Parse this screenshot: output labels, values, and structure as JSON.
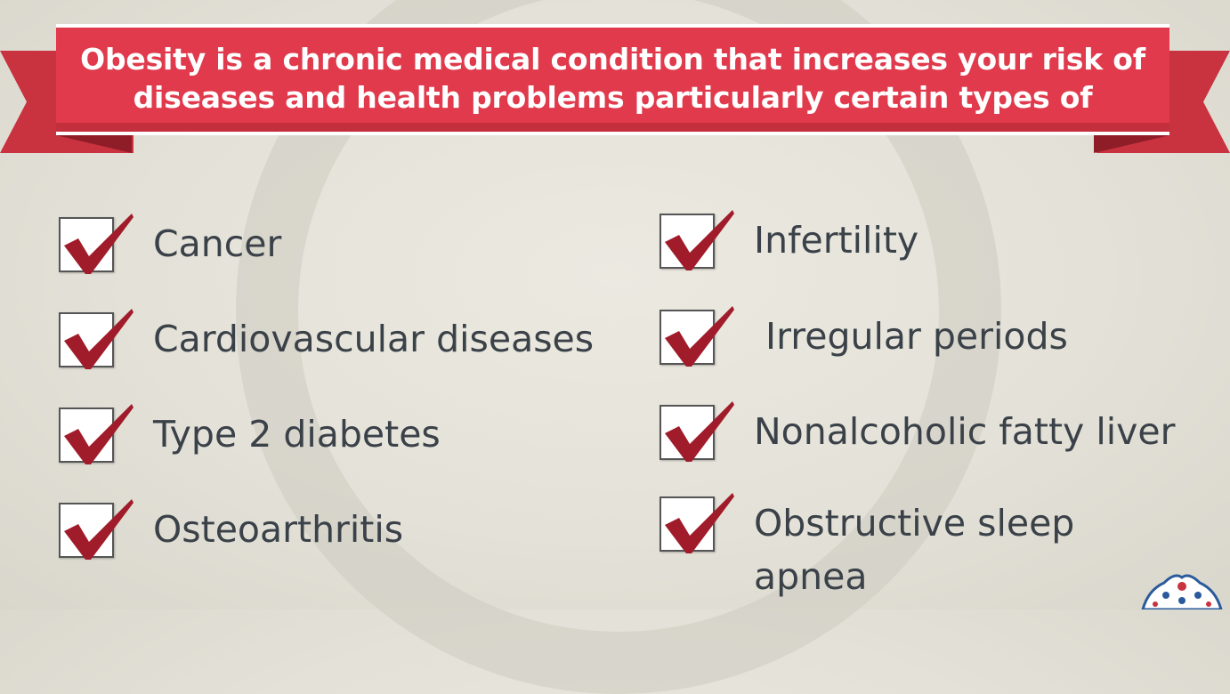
{
  "banner": {
    "line1": "Obesity is a chronic medical condition that increases your risk of",
    "line2": "diseases and health problems particularly certain types of"
  },
  "left_list": [
    {
      "label": "Cancer"
    },
    {
      "label": "Cardiovascular diseases"
    },
    {
      "label": "Type 2 diabetes"
    },
    {
      "label": "Osteoarthritis"
    }
  ],
  "right_list": [
    {
      "label": "Infertility"
    },
    {
      "label": " Irregular periods"
    },
    {
      "label": "Nonalcoholic fatty liver"
    },
    {
      "label": "Obstructive sleep"
    }
  ],
  "right_list_extra": {
    "label": "apnea"
  },
  "colors": {
    "banner": "#e03a4c",
    "check": "#a01c2a",
    "text": "#3a4148"
  },
  "icons": {
    "check": "check-icon",
    "logo": "ornamental-logo-icon"
  }
}
